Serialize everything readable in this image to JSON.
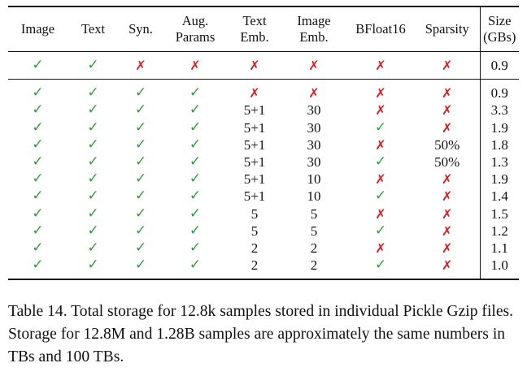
{
  "table": {
    "headers": [
      {
        "lines": [
          "Image"
        ]
      },
      {
        "lines": [
          "Text"
        ]
      },
      {
        "lines": [
          "Syn."
        ]
      },
      {
        "lines": [
          "Aug.",
          "Params"
        ]
      },
      {
        "lines": [
          "Text",
          "Emb."
        ]
      },
      {
        "lines": [
          "Image",
          "Emb."
        ]
      },
      {
        "lines": [
          "BFloat16"
        ]
      },
      {
        "lines": [
          "Sparsity"
        ]
      },
      {
        "lines": [
          "Size",
          "(GBs)"
        ]
      }
    ],
    "baseline_row": [
      "✓",
      "✓",
      "✗",
      "✗",
      "✗",
      "✗",
      "✗",
      "✗",
      "0.9"
    ],
    "rows": [
      [
        "✓",
        "✓",
        "✓",
        "✓",
        "✗",
        "✗",
        "✗",
        "✗",
        "0.9"
      ],
      [
        "✓",
        "✓",
        "✓",
        "✓",
        "5+1",
        "30",
        "✗",
        "✗",
        "3.3"
      ],
      [
        "✓",
        "✓",
        "✓",
        "✓",
        "5+1",
        "30",
        "✓",
        "✗",
        "1.9"
      ],
      [
        "✓",
        "✓",
        "✓",
        "✓",
        "5+1",
        "30",
        "✗",
        "50%",
        "1.8"
      ],
      [
        "✓",
        "✓",
        "✓",
        "✓",
        "5+1",
        "30",
        "✓",
        "50%",
        "1.3"
      ],
      [
        "✓",
        "✓",
        "✓",
        "✓",
        "5+1",
        "10",
        "✗",
        "✗",
        "1.9"
      ],
      [
        "✓",
        "✓",
        "✓",
        "✓",
        "5+1",
        "10",
        "✓",
        "✗",
        "1.4"
      ],
      [
        "✓",
        "✓",
        "✓",
        "✓",
        "5",
        "5",
        "✗",
        "✗",
        "1.5"
      ],
      [
        "✓",
        "✓",
        "✓",
        "✓",
        "5",
        "5",
        "✓",
        "✗",
        "1.2"
      ],
      [
        "✓",
        "✓",
        "✓",
        "✓",
        "2",
        "2",
        "✗",
        "✗",
        "1.1"
      ],
      [
        "✓",
        "✓",
        "✓",
        "✓",
        "2",
        "2",
        "✓",
        "✗",
        "1.0"
      ]
    ]
  },
  "colors": {
    "check": "#2e9e3a",
    "cross": "#d32020"
  },
  "caption": "Table 14. Total storage for 12.8k samples stored in individual Pickle Gzip files. Storage for 12.8M and 1.28B samples are approximately the same numbers in TBs and 100 TBs."
}
